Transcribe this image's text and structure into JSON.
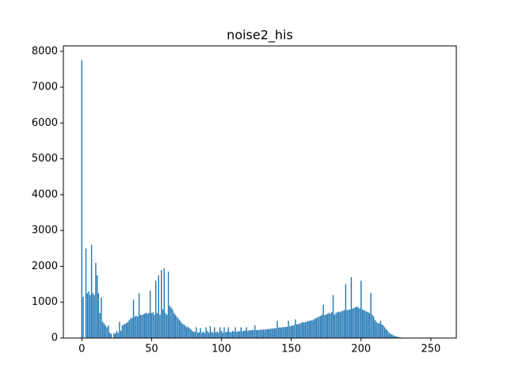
{
  "chart_data": {
    "type": "bar",
    "title": "noise2_his",
    "color": "#1f77b4",
    "x": [
      0,
      1,
      2,
      3,
      4,
      5,
      6,
      7,
      8,
      9,
      10,
      11,
      12,
      13,
      14,
      15,
      16,
      17,
      18,
      19,
      20,
      21,
      22,
      23,
      24,
      25,
      26,
      27,
      28,
      29,
      30,
      31,
      32,
      33,
      34,
      35,
      36,
      37,
      38,
      39,
      40,
      41,
      42,
      43,
      44,
      45,
      46,
      47,
      48,
      49,
      50,
      51,
      52,
      53,
      54,
      55,
      56,
      57,
      58,
      59,
      60,
      61,
      62,
      63,
      64,
      65,
      66,
      67,
      68,
      69,
      70,
      71,
      72,
      73,
      74,
      75,
      76,
      77,
      78,
      79,
      80,
      81,
      82,
      83,
      84,
      85,
      86,
      87,
      88,
      89,
      90,
      91,
      92,
      93,
      94,
      95,
      96,
      97,
      98,
      99,
      100,
      101,
      102,
      103,
      104,
      105,
      106,
      107,
      108,
      109,
      110,
      111,
      112,
      113,
      114,
      115,
      116,
      117,
      118,
      119,
      120,
      121,
      122,
      123,
      124,
      125,
      126,
      127,
      128,
      129,
      130,
      131,
      132,
      133,
      134,
      135,
      136,
      137,
      138,
      139,
      140,
      141,
      142,
      143,
      144,
      145,
      146,
      147,
      148,
      149,
      150,
      151,
      152,
      153,
      154,
      155,
      156,
      157,
      158,
      159,
      160,
      161,
      162,
      163,
      164,
      165,
      166,
      167,
      168,
      169,
      170,
      171,
      172,
      173,
      174,
      175,
      176,
      177,
      178,
      179,
      180,
      181,
      182,
      183,
      184,
      185,
      186,
      187,
      188,
      189,
      190,
      191,
      192,
      193,
      194,
      195,
      196,
      197,
      198,
      199,
      200,
      201,
      202,
      203,
      204,
      205,
      206,
      207,
      208,
      209,
      210,
      211,
      212,
      213,
      214,
      215,
      216,
      217,
      218,
      219,
      220,
      221,
      222,
      223,
      224,
      225,
      226,
      227,
      228,
      229,
      230,
      231,
      232,
      233,
      234,
      235,
      236,
      237,
      238,
      239,
      240,
      241,
      242,
      243,
      244,
      245,
      246,
      247,
      248,
      249,
      250,
      251,
      252,
      253,
      254,
      255
    ],
    "values": [
      7750,
      1150,
      0,
      2500,
      1250,
      1300,
      1200,
      2600,
      1250,
      1200,
      2100,
      1750,
      1250,
      700,
      1130,
      450,
      400,
      350,
      300,
      350,
      150,
      120,
      0,
      130,
      130,
      200,
      150,
      450,
      200,
      350,
      380,
      400,
      420,
      450,
      500,
      550,
      560,
      1070,
      600,
      620,
      600,
      1250,
      650,
      640,
      660,
      680,
      700,
      680,
      700,
      1320,
      700,
      720,
      650,
      1600,
      700,
      1750,
      650,
      1900,
      800,
      1950,
      700,
      650,
      1850,
      900,
      850,
      800,
      700,
      650,
      600,
      550,
      500,
      450,
      400,
      380,
      350,
      300,
      320,
      280,
      250,
      200,
      170,
      180,
      300,
      150,
      160,
      280,
      150,
      180,
      140,
      300,
      200,
      150,
      330,
      180,
      150,
      300,
      160,
      180,
      150,
      300,
      200,
      150,
      300,
      160,
      180,
      300,
      170,
      160,
      200,
      180,
      300,
      170,
      200,
      180,
      300,
      190,
      200,
      210,
      300,
      200,
      220,
      210,
      230,
      220,
      350,
      220,
      230,
      220,
      240,
      230,
      240,
      230,
      250,
      240,
      260,
      250,
      270,
      260,
      280,
      270,
      480,
      290,
      300,
      280,
      310,
      300,
      320,
      310,
      480,
      330,
      340,
      350,
      360,
      520,
      380,
      390,
      400,
      420,
      450,
      430,
      440,
      460,
      480,
      470,
      500,
      490,
      520,
      540,
      560,
      580,
      600,
      620,
      650,
      930,
      640,
      660,
      680,
      700,
      680,
      720,
      1200,
      650,
      700,
      720,
      740,
      720,
      750,
      760,
      780,
      1500,
      780,
      790,
      800,
      1700,
      820,
      840,
      860,
      880,
      850,
      830,
      1600,
      800,
      780,
      760,
      740,
      720,
      700,
      1250,
      650,
      600,
      500,
      450,
      420,
      400,
      480,
      380,
      350,
      300,
      250,
      200,
      150,
      120,
      100,
      80,
      60,
      50,
      40,
      30,
      20,
      10,
      0,
      0,
      0,
      0,
      0,
      0,
      0,
      0,
      0,
      0,
      0,
      0,
      0,
      0,
      0,
      0,
      0,
      0,
      0,
      0,
      0,
      0,
      0,
      0,
      0,
      0
    ],
    "xlim": [
      -13.2,
      268.2
    ],
    "xticks": [
      0,
      50,
      100,
      150,
      200,
      250
    ],
    "ylim": [
      0,
      8150
    ],
    "yticks": [
      0,
      1000,
      2000,
      3000,
      4000,
      5000,
      6000,
      7000,
      8000
    ]
  }
}
